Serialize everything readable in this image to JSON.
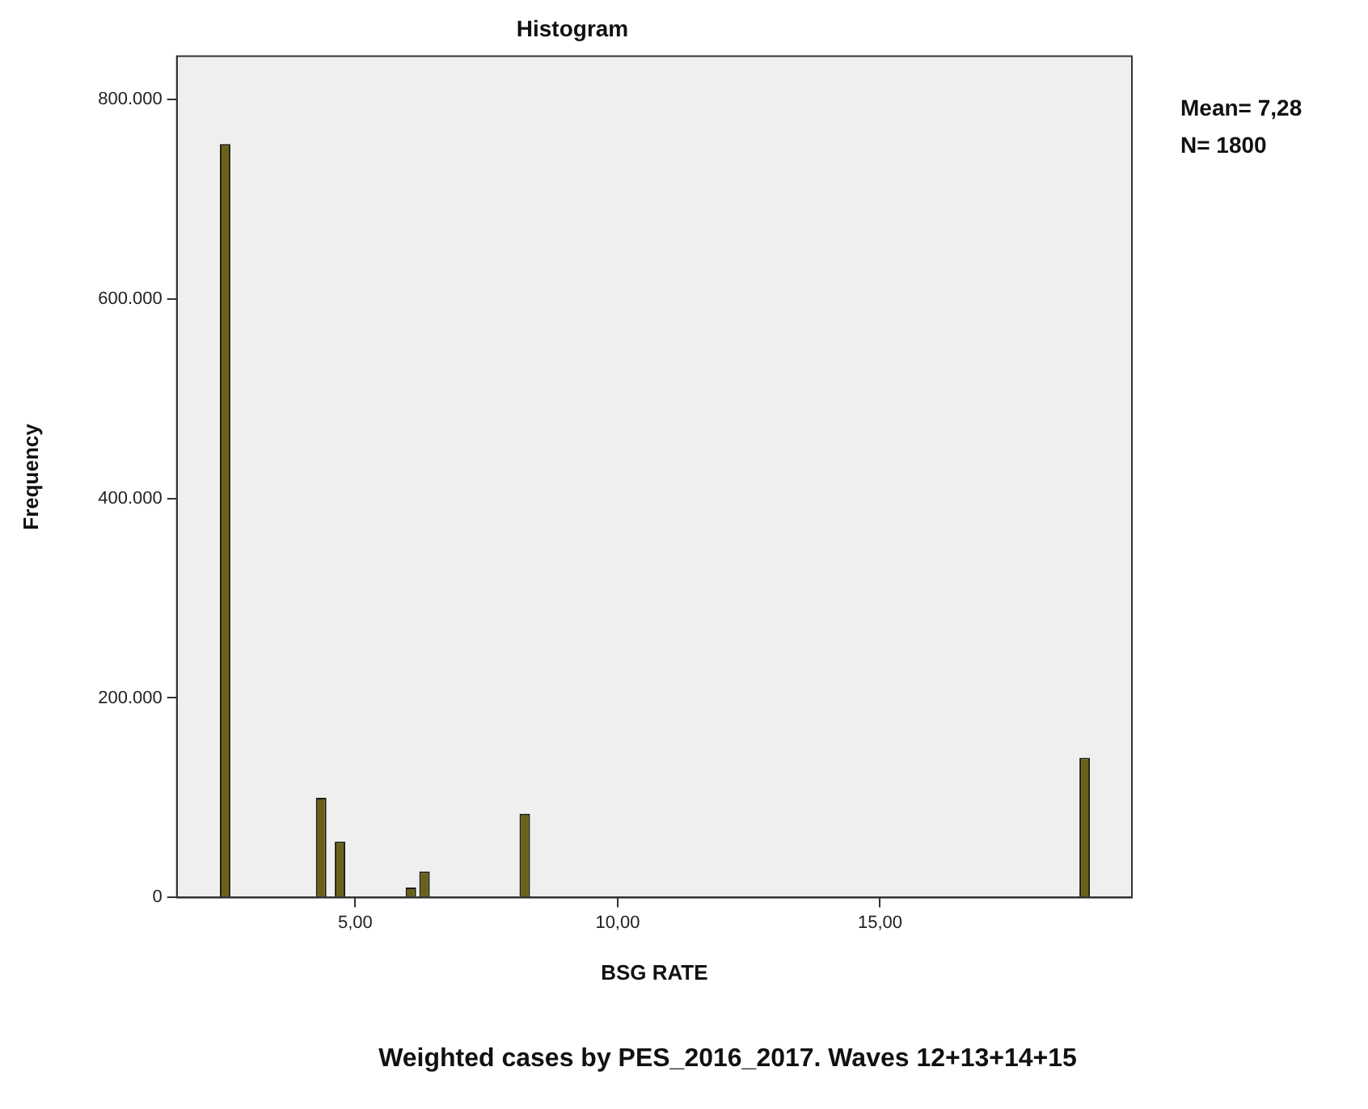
{
  "chart_data": {
    "type": "histogram",
    "title": "Histogram",
    "xlabel": "BSG RATE",
    "ylabel": "Frequency",
    "bins": [
      2.42,
      2.62,
      4.25,
      4.45,
      4.61,
      4.81,
      5.96,
      6.16,
      6.22,
      6.42,
      8.13,
      8.33,
      18.8,
      19.0
    ],
    "values": [
      755000,
      0,
      100000,
      0,
      56000,
      0,
      10000,
      0,
      26000,
      0,
      84000,
      0,
      140000
    ],
    "color": "#6b6018",
    "xlim": [
      1.6,
      19.8
    ],
    "xticks": [
      {
        "value": 5,
        "label": "5,00"
      },
      {
        "value": 10,
        "label": "10,00"
      },
      {
        "value": 15,
        "label": "15,00"
      }
    ],
    "ylim": [
      0,
      843000
    ],
    "yticks": [
      {
        "value": 0,
        "label": "0"
      },
      {
        "value": 200000,
        "label": "200.000"
      },
      {
        "value": 400000,
        "label": "400.000"
      },
      {
        "value": 600000,
        "label": "600.000"
      },
      {
        "value": 800000,
        "label": "800.000"
      }
    ],
    "grid": false,
    "legend": false,
    "annotations": [
      "Mean= 7,28",
      "N= 1800",
      "Weighted cases by PES_2016_2017. Waves 12+13+14+15"
    ]
  }
}
